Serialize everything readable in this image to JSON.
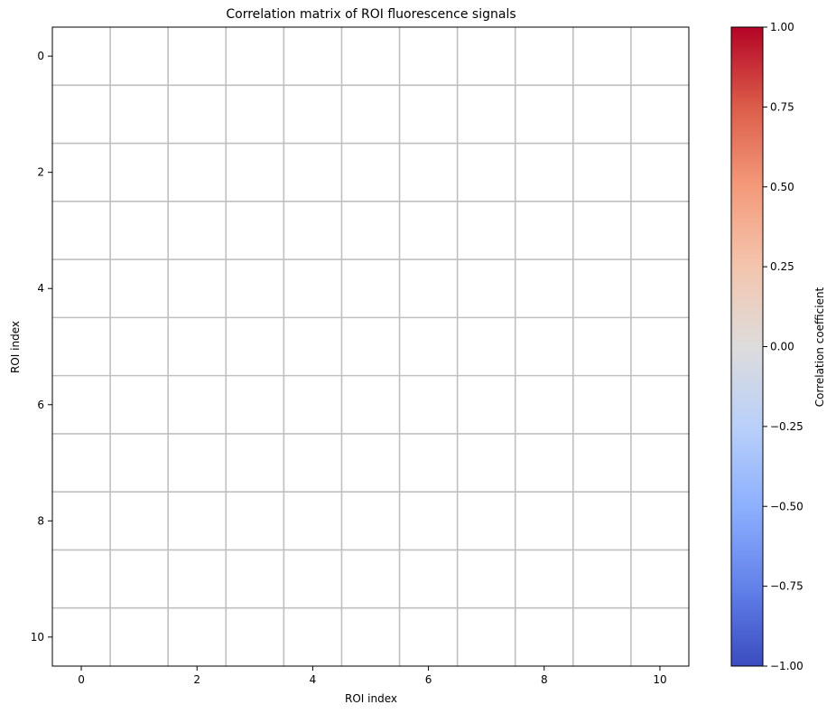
{
  "chart_data": {
    "type": "heatmap",
    "title": "Correlation matrix of ROI fluorescence signals",
    "xlabel": "ROI index",
    "ylabel": "ROI index",
    "x_ticks": [
      0,
      2,
      4,
      6,
      8,
      10
    ],
    "y_ticks": [
      0,
      2,
      4,
      6,
      8,
      10
    ],
    "xlim": [
      -0.5,
      10.5
    ],
    "ylim": [
      10.5,
      -0.5
    ],
    "rows": 11,
    "cols": 11,
    "grid": true,
    "cells_rendered": "blank",
    "colorbar": {
      "label": "Correlation coefficient",
      "colormap": "coolwarm",
      "range": [
        -1.0,
        1.0
      ],
      "ticks": [
        1.0,
        0.75,
        0.5,
        0.25,
        0.0,
        -0.25,
        -0.5,
        -0.75,
        -1.0
      ],
      "tick_labels": [
        "1.00",
        "0.75",
        "0.50",
        "0.25",
        "0.00",
        "−0.25",
        "−0.50",
        "−0.75",
        "−1.00"
      ],
      "colors": [
        "#b40426",
        "#dc5d4a",
        "#f49a7b",
        "#f4c5ad",
        "#dddcdc",
        "#b9d0f9",
        "#8db0fe",
        "#6282ea",
        "#3b4cc0"
      ]
    },
    "grid_color": "#bfbfbf"
  }
}
